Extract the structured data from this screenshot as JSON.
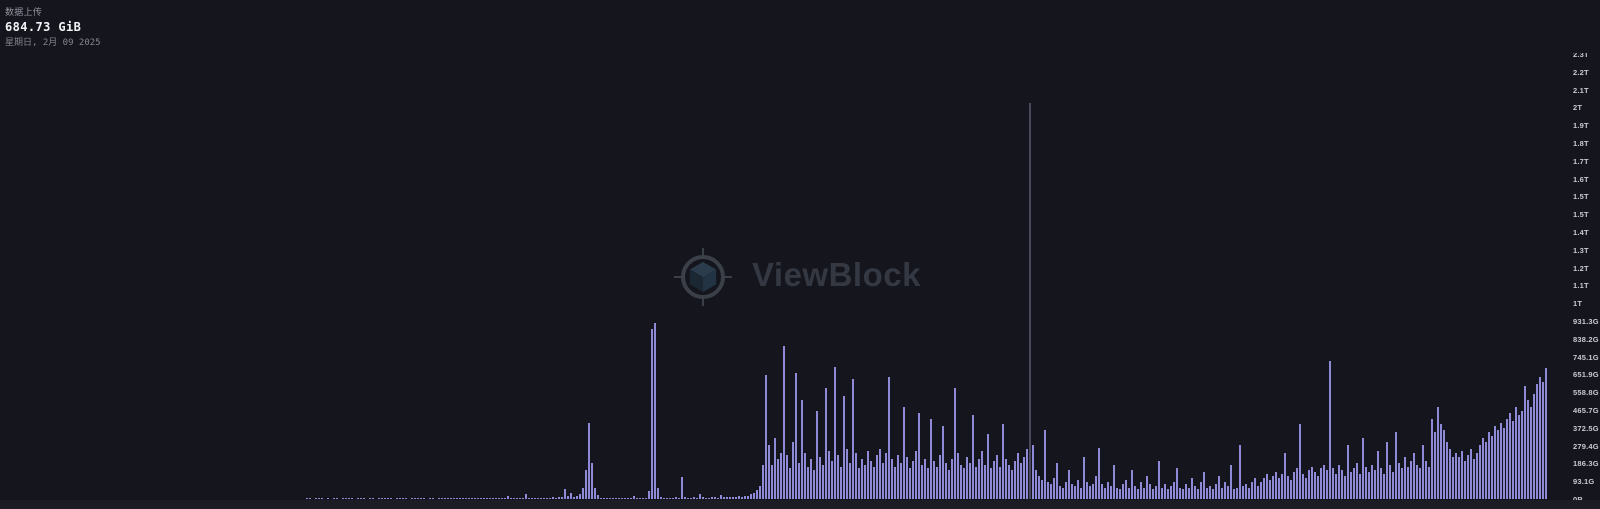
{
  "tooltip": {
    "title": "数据上传",
    "value": "684.73 GiB",
    "date": "星期日, 2月 09 2025"
  },
  "watermark": {
    "text": "ViewBlock",
    "logo": "cube-in-crosshair-circle"
  },
  "colors": {
    "background": "#15151d",
    "bottom_strip": "#1c1c24",
    "bar": "#8e8ad8",
    "bar_tall_spike": "#4a4a5f",
    "axis_label": "#c7c9d3",
    "tooltip_title": "#9496a0",
    "tooltip_value": "#f2f3f6",
    "tooltip_date": "#84868f",
    "watermark_text": "#343842",
    "watermark_ring": "#3b4048",
    "cube_top": "#2b3c4c",
    "cube_left": "#1b2733",
    "cube_right": "#223444"
  },
  "chart_data": {
    "type": "bar",
    "title": "数据上传",
    "unit": "GiB",
    "legend": "none",
    "grid": false,
    "y_axis_side": "right",
    "ylim_gib": [
      0,
      2328
    ],
    "y_tick_spacing_gib": 93.13,
    "y_tick_labels": [
      "0B",
      "93.1G",
      "186.3G",
      "279.4G",
      "372.5G",
      "465.7G",
      "558.8G",
      "651.9G",
      "745.1G",
      "838.2G",
      "931.3G",
      "1T",
      "1.1T",
      "1.2T",
      "1.3T",
      "1.4T",
      "1.5T",
      "1.5T",
      "1.6T",
      "1.7T",
      "1.8T",
      "1.9T",
      "2T",
      "2.1T",
      "2.2T",
      "2.3T"
    ],
    "highlighted_point": {
      "date": "星期日, 2月 09 2025",
      "value_gib": 684.73
    },
    "values_gib": [
      2,
      2,
      0,
      2,
      2,
      2,
      0,
      2,
      0,
      2,
      2,
      0,
      2,
      2,
      2,
      2,
      0,
      2,
      2,
      2,
      0,
      2,
      2,
      0,
      2,
      2,
      2,
      2,
      2,
      0,
      2,
      2,
      2,
      2,
      0,
      2,
      2,
      2,
      2,
      2,
      0,
      2,
      2,
      0,
      2,
      2,
      4,
      5,
      4,
      6,
      5,
      4,
      5,
      4,
      2,
      3,
      2,
      2,
      3,
      2,
      3,
      2,
      2,
      3,
      2,
      2,
      3,
      18,
      4,
      3,
      2,
      3,
      2,
      25,
      5,
      3,
      4,
      3,
      5,
      4,
      6,
      5,
      8,
      6,
      10,
      8,
      50,
      14,
      30,
      12,
      18,
      25,
      60,
      150,
      400,
      190,
      60,
      20,
      6,
      4,
      3,
      5,
      4,
      3,
      6,
      4,
      5,
      3,
      4,
      15,
      5,
      4,
      3,
      6,
      40,
      890,
      920,
      60,
      8,
      5,
      4,
      6,
      5,
      8,
      4,
      115,
      10,
      6,
      5,
      8,
      6,
      25,
      8,
      5,
      6,
      10,
      8,
      6,
      20,
      8,
      10,
      12,
      8,
      10,
      14,
      12,
      15,
      18,
      25,
      30,
      45,
      70,
      180,
      650,
      280,
      180,
      320,
      210,
      240,
      800,
      230,
      160,
      300,
      660,
      190,
      520,
      240,
      170,
      210,
      150,
      460,
      220,
      180,
      580,
      250,
      200,
      690,
      230,
      170,
      540,
      260,
      190,
      630,
      240,
      160,
      210,
      180,
      250,
      200,
      170,
      230,
      260,
      190,
      240,
      640,
      210,
      170,
      230,
      190,
      480,
      220,
      160,
      200,
      250,
      450,
      180,
      210,
      160,
      420,
      200,
      170,
      230,
      380,
      190,
      150,
      210,
      580,
      240,
      180,
      160,
      220,
      190,
      440,
      170,
      210,
      250,
      180,
      340,
      160,
      200,
      230,
      170,
      390,
      210,
      180,
      150,
      200,
      240,
      190,
      220,
      260,
      2070,
      280,
      150,
      120,
      100,
      360,
      90,
      80,
      110,
      190,
      70,
      60,
      90,
      150,
      80,
      70,
      100,
      60,
      220,
      90,
      70,
      80,
      120,
      265,
      80,
      60,
      90,
      70,
      180,
      60,
      50,
      80,
      100,
      60,
      150,
      70,
      50,
      90,
      60,
      120,
      80,
      50,
      70,
      200,
      60,
      80,
      50,
      70,
      90,
      160,
      60,
      50,
      80,
      60,
      110,
      70,
      50,
      90,
      140,
      60,
      70,
      50,
      80,
      120,
      60,
      90,
      70,
      180,
      50,
      60,
      285,
      70,
      80,
      60,
      90,
      110,
      70,
      90,
      110,
      130,
      100,
      120,
      140,
      110,
      130,
      240,
      120,
      100,
      140,
      160,
      390,
      130,
      110,
      150,
      170,
      140,
      120,
      160,
      180,
      150,
      720,
      160,
      130,
      180,
      150,
      120,
      280,
      140,
      160,
      190,
      130,
      320,
      170,
      140,
      180,
      150,
      250,
      160,
      130,
      300,
      180,
      140,
      350,
      190,
      160,
      220,
      170,
      200,
      240,
      180,
      160,
      280,
      200,
      170,
      420,
      350,
      480,
      390,
      360,
      300,
      260,
      220,
      240,
      220,
      250,
      200,
      230,
      260,
      210,
      240,
      280,
      320,
      300,
      350,
      330,
      380,
      360,
      400,
      370,
      420,
      450,
      410,
      480,
      440,
      460,
      590,
      520,
      480,
      550,
      600,
      640,
      610,
      684.73
    ]
  }
}
